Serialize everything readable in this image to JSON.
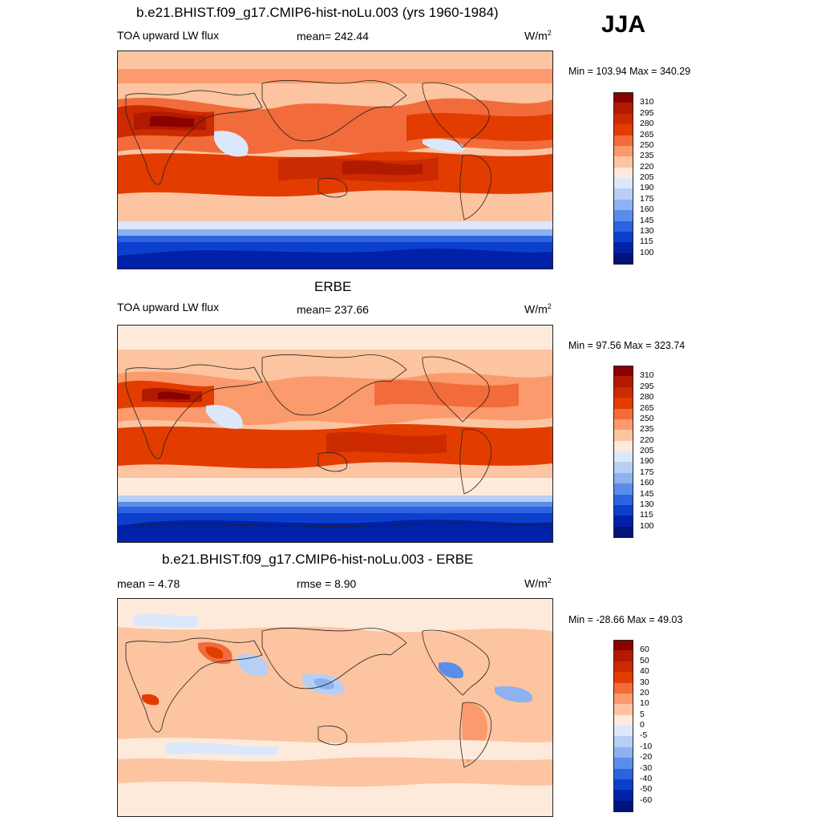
{
  "season": "JJA",
  "panels": [
    {
      "id": "model",
      "title": "b.e21.BHIST.f09_g17.CMIP6-hist-noLu.003 (yrs 1960-1984)",
      "left_label": "TOA upward LW flux",
      "center_label": "mean= 242.44",
      "units_base": "W/m",
      "units_sup": "2",
      "minmax": "Min = 103.94 Max = 340.29",
      "colorbar": {
        "labels": [
          "310",
          "295",
          "280",
          "265",
          "250",
          "235",
          "220",
          "205",
          "190",
          "175",
          "160",
          "145",
          "130",
          "115",
          "100"
        ],
        "colors": [
          "#8b0000",
          "#b01a00",
          "#cc2a00",
          "#e33c00",
          "#f26b3a",
          "#fb9a6c",
          "#fcc4a0",
          "#feeadb",
          "#dbe8fb",
          "#b7cff6",
          "#8eb1f1",
          "#5a8de9",
          "#2d63e0",
          "#0c3fcc",
          "#0021a8",
          "#00137a"
        ]
      }
    },
    {
      "id": "obs",
      "title": "ERBE",
      "left_label": "TOA upward LW flux",
      "center_label": "mean= 237.66",
      "units_base": "W/m",
      "units_sup": "2",
      "minmax": "Min =  97.56 Max = 323.74",
      "colorbar": {
        "labels": [
          "310",
          "295",
          "280",
          "265",
          "250",
          "235",
          "220",
          "205",
          "190",
          "175",
          "160",
          "145",
          "130",
          "115",
          "100"
        ],
        "colors": [
          "#8b0000",
          "#b01a00",
          "#cc2a00",
          "#e33c00",
          "#f26b3a",
          "#fb9a6c",
          "#fcc4a0",
          "#feeadb",
          "#dbe8fb",
          "#b7cff6",
          "#8eb1f1",
          "#5a8de9",
          "#2d63e0",
          "#0c3fcc",
          "#0021a8",
          "#00137a"
        ]
      }
    },
    {
      "id": "diff",
      "title": "b.e21.BHIST.f09_g17.CMIP6-hist-noLu.003 - ERBE",
      "left_label": "mean =   4.78",
      "center_label": "rmse =   8.90",
      "units_base": "W/m",
      "units_sup": "2",
      "minmax": "Min = -28.66 Max =  49.03",
      "colorbar": {
        "labels": [
          "60",
          "50",
          "40",
          "30",
          "20",
          "10",
          "5",
          "0",
          "-5",
          "-10",
          "-20",
          "-30",
          "-40",
          "-50",
          "-60"
        ],
        "colors": [
          "#8b0000",
          "#b01a00",
          "#cc2a00",
          "#e33c00",
          "#f26b3a",
          "#fb9a6c",
          "#fcc4a0",
          "#feeadb",
          "#dbe8fb",
          "#b7cff6",
          "#8eb1f1",
          "#5a8de9",
          "#2d63e0",
          "#0c3fcc",
          "#0021a8",
          "#00137a"
        ]
      }
    }
  ]
}
